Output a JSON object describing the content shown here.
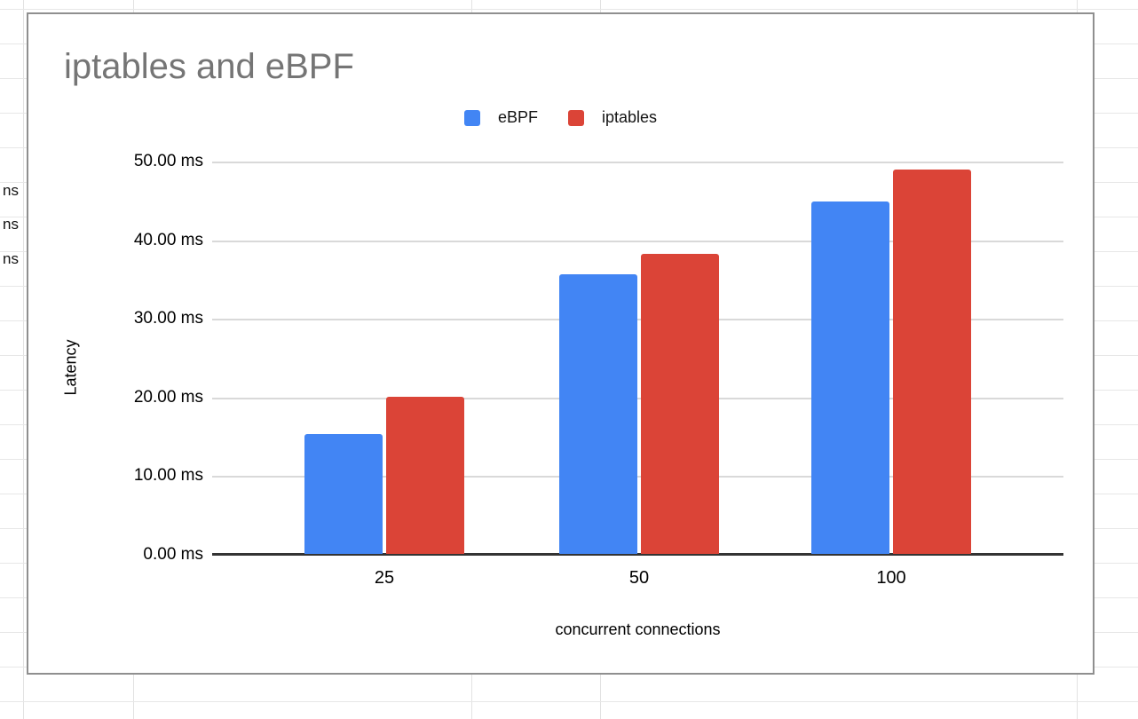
{
  "background": {
    "partial_cell_texts": [
      "ns",
      "ns",
      "ns"
    ],
    "gridline_color": "#e2e2e2"
  },
  "chart": {
    "title": "iptables and eBPF",
    "title_color": "#757575",
    "y_axis": {
      "title": "Latency",
      "tick_labels": [
        "0.00 ms",
        "10.00 ms",
        "20.00 ms",
        "30.00 ms",
        "40.00 ms",
        "50.00 ms"
      ]
    },
    "x_axis": {
      "title": "concurrent connections",
      "tick_labels": [
        "25",
        "50",
        "100"
      ]
    }
  },
  "chart_data": {
    "type": "bar",
    "title": "iptables and eBPF",
    "categories": [
      "25",
      "50",
      "100"
    ],
    "series": [
      {
        "name": "eBPF",
        "color": "#4285f4",
        "values": [
          15.2,
          35.5,
          44.8
        ]
      },
      {
        "name": "iptables",
        "color": "#db4437",
        "values": [
          20.0,
          38.1,
          48.9
        ]
      }
    ],
    "xlabel": "concurrent connections",
    "ylabel": "Latency",
    "ylim": [
      0,
      50
    ],
    "y_tick_step": 10,
    "y_tick_suffix": "ms",
    "grid": true,
    "legend_position": "top-center",
    "accent_colors": {
      "ebpf": "#4285f4",
      "iptables": "#db4437"
    }
  }
}
